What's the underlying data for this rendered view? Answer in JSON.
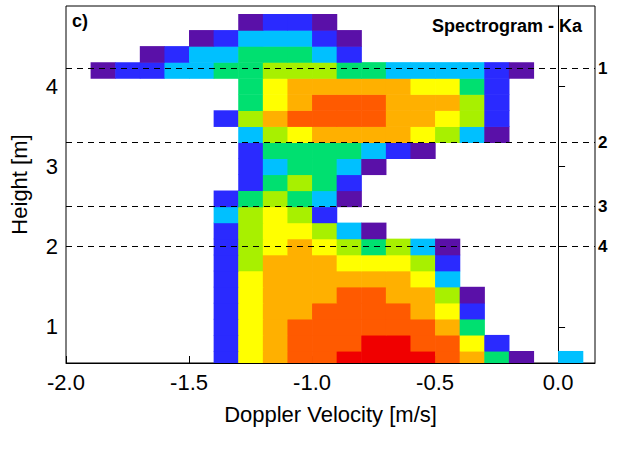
{
  "chart_data": {
    "type": "heatmap",
    "title": "Spectrogram - Ka",
    "panel": "c)",
    "x_label": "Doppler Velocity [m/s]",
    "y_label": "Height [m]",
    "xlim": [
      -2.0,
      0.15
    ],
    "ylim": [
      0.55,
      5.0
    ],
    "xticks": [
      {
        "value": -2.0,
        "label": "-2.0"
      },
      {
        "value": -1.5,
        "label": "-1.5"
      },
      {
        "value": -1.0,
        "label": "-1.0"
      },
      {
        "value": -0.5,
        "label": "-0.5"
      },
      {
        "value": 0.0,
        "label": "0.0"
      }
    ],
    "yticks": [
      1,
      2,
      3,
      4
    ],
    "grid": false,
    "zlim": [
      1,
      9
    ],
    "cells": {
      "x": [
        -1.95,
        -1.85,
        -1.75,
        -1.65,
        -1.55,
        -1.45,
        -1.35,
        -1.25,
        -1.15,
        -1.05,
        -0.95,
        -0.85,
        -0.75,
        -0.65,
        -0.55,
        -0.45,
        -0.35,
        -0.25,
        -0.15,
        -0.05,
        0.05
      ],
      "y": [
        0.6,
        0.8,
        1.0,
        1.2,
        1.4,
        1.6,
        1.8,
        2.0,
        2.2,
        2.4,
        2.6,
        2.8,
        3.0,
        3.2,
        3.4,
        3.6,
        3.8,
        4.0,
        4.2,
        4.4,
        4.6,
        4.8
      ],
      "values": [
        [
          0,
          0,
          0,
          0,
          0,
          0,
          2,
          6,
          7,
          8,
          8,
          9,
          9,
          9,
          9,
          8,
          7,
          4,
          1,
          0,
          3
        ],
        [
          0,
          0,
          0,
          0,
          0,
          0,
          2,
          6,
          7,
          8,
          8,
          8,
          9,
          9,
          8,
          8,
          6,
          2,
          0,
          0,
          0
        ],
        [
          0,
          0,
          0,
          0,
          0,
          0,
          2,
          6,
          7,
          8,
          8,
          8,
          8,
          8,
          8,
          7,
          4,
          0,
          0,
          0,
          0
        ],
        [
          0,
          0,
          0,
          0,
          0,
          0,
          2,
          6,
          7,
          7,
          8,
          8,
          8,
          8,
          7,
          6,
          2,
          0,
          0,
          0,
          0
        ],
        [
          0,
          0,
          0,
          0,
          0,
          0,
          2,
          6,
          7,
          7,
          7,
          8,
          8,
          7,
          7,
          5,
          1,
          0,
          0,
          0,
          0
        ],
        [
          0,
          0,
          0,
          0,
          0,
          0,
          2,
          6,
          7,
          7,
          7,
          7,
          7,
          7,
          6,
          3,
          0,
          0,
          0,
          0,
          0
        ],
        [
          0,
          0,
          0,
          0,
          0,
          0,
          2,
          5,
          7,
          7,
          7,
          6,
          6,
          6,
          5,
          2,
          0,
          0,
          0,
          0,
          0
        ],
        [
          0,
          0,
          0,
          0,
          0,
          0,
          2,
          5,
          6,
          7,
          6,
          5,
          4,
          5,
          3,
          1,
          0,
          0,
          0,
          0,
          0
        ],
        [
          0,
          0,
          0,
          0,
          0,
          0,
          2,
          5,
          6,
          6,
          5,
          3,
          1,
          0,
          0,
          0,
          0,
          0,
          0,
          0,
          0
        ],
        [
          0,
          0,
          0,
          0,
          0,
          0,
          3,
          5,
          6,
          5,
          2,
          0,
          0,
          0,
          0,
          0,
          0,
          0,
          0,
          0,
          0
        ],
        [
          0,
          0,
          0,
          0,
          0,
          0,
          2,
          4,
          5,
          4,
          3,
          1,
          0,
          0,
          0,
          0,
          0,
          0,
          0,
          0,
          0
        ],
        [
          0,
          0,
          0,
          0,
          0,
          0,
          0,
          2,
          4,
          5,
          4,
          2,
          0,
          0,
          0,
          0,
          0,
          0,
          0,
          0,
          0
        ],
        [
          0,
          0,
          0,
          0,
          0,
          0,
          0,
          2,
          3,
          4,
          4,
          3,
          1,
          0,
          0,
          0,
          0,
          0,
          0,
          0,
          0
        ],
        [
          0,
          0,
          0,
          0,
          0,
          0,
          0,
          2,
          4,
          4,
          4,
          4,
          3,
          2,
          1,
          0,
          0,
          0,
          0,
          0,
          0
        ],
        [
          0,
          0,
          0,
          0,
          0,
          0,
          0,
          3,
          5,
          6,
          7,
          7,
          7,
          7,
          6,
          5,
          3,
          1,
          0,
          0,
          0
        ],
        [
          0,
          0,
          0,
          0,
          0,
          0,
          2,
          5,
          7,
          8,
          8,
          8,
          8,
          7,
          7,
          6,
          5,
          2,
          0,
          0,
          0
        ],
        [
          0,
          0,
          0,
          0,
          0,
          0,
          0,
          4,
          6,
          7,
          8,
          8,
          8,
          7,
          7,
          7,
          5,
          2,
          0,
          0,
          0
        ],
        [
          0,
          0,
          0,
          0,
          0,
          0,
          0,
          4,
          6,
          7,
          7,
          7,
          7,
          7,
          6,
          6,
          4,
          2,
          0,
          0,
          0
        ],
        [
          0,
          1,
          2,
          2,
          3,
          3,
          4,
          4,
          5,
          5,
          5,
          4,
          4,
          3,
          3,
          3,
          3,
          2,
          1,
          0,
          0
        ],
        [
          0,
          0,
          0,
          1,
          2,
          3,
          3,
          4,
          4,
          4,
          3,
          2,
          0,
          0,
          0,
          0,
          0,
          0,
          0,
          0,
          0
        ],
        [
          0,
          0,
          0,
          0,
          0,
          1,
          2,
          3,
          3,
          3,
          2,
          1,
          0,
          0,
          0,
          0,
          0,
          0,
          0,
          0,
          0
        ],
        [
          0,
          0,
          0,
          0,
          0,
          0,
          0,
          1,
          2,
          2,
          1,
          0,
          0,
          0,
          0,
          0,
          0,
          0,
          0,
          0,
          0
        ]
      ]
    },
    "lines": [
      {
        "y": 4.22,
        "label": "1"
      },
      {
        "y": 3.3,
        "label": "2"
      },
      {
        "y": 2.5,
        "label": "3"
      },
      {
        "y": 2.0,
        "label": "4"
      }
    ]
  }
}
